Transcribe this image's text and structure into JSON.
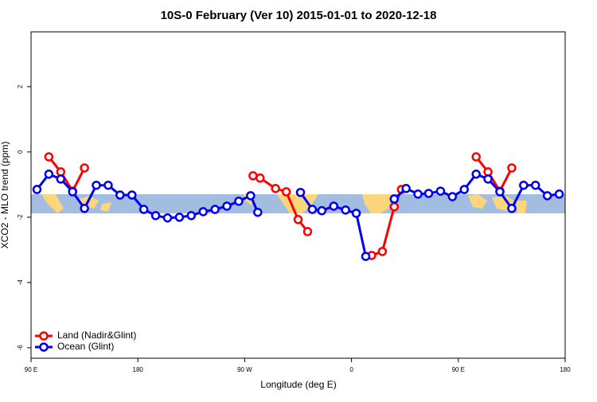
{
  "chart_data": {
    "type": "line",
    "title": "10S-0 February (Ver 10)   2015-01-01 to 2020-12-18",
    "x_label": "Longitude (deg E)",
    "y_label": "XCO2 - MLO trend (ppm)",
    "xlim": [
      90,
      540
    ],
    "ylim": [
      -6.32,
      3.68
    ],
    "xticks": [
      {
        "value": 90,
        "label": "90 E"
      },
      {
        "value": 180,
        "label": "180"
      },
      {
        "value": 270,
        "label": "90 W"
      },
      {
        "value": 360,
        "label": "0"
      },
      {
        "value": 450,
        "label": "90 E"
      },
      {
        "value": 540,
        "label": "180"
      }
    ],
    "yticks": [
      -6,
      -4,
      -2,
      0,
      2
    ],
    "legend": "bottom-left",
    "series": [
      {
        "name": "Land (Nadir&Glint)",
        "color": "#ff0000",
        "x": [
          105,
          115,
          125,
          135,
          null,
          277,
          283,
          296,
          305,
          315,
          323,
          null,
          377,
          386,
          396,
          402,
          null,
          465,
          475,
          485,
          495
        ],
        "values": [
          -0.15,
          -0.61,
          -1.2,
          -0.49,
          null,
          -0.73,
          -0.8,
          -1.12,
          -1.22,
          -2.07,
          -2.44,
          null,
          -3.17,
          -3.05,
          -1.68,
          -1.15,
          null,
          -0.15,
          -0.61,
          -1.2,
          -0.49
        ]
      },
      {
        "name": "Ocean (Glint)",
        "color": "#0000ee",
        "x": [
          95,
          105,
          115,
          125,
          135,
          145,
          155,
          165,
          175,
          185,
          195,
          205,
          215,
          225,
          235,
          245,
          255,
          265,
          275,
          281,
          null,
          317,
          327,
          335,
          345,
          355,
          364,
          372,
          null,
          396,
          406,
          416,
          425,
          435,
          445,
          455,
          465,
          475,
          485,
          495,
          505,
          515,
          525,
          535
        ],
        "values": [
          -1.15,
          -0.68,
          -0.83,
          -1.22,
          -1.73,
          -1.02,
          -1.02,
          -1.32,
          -1.32,
          -1.76,
          -1.95,
          -2.02,
          -2.0,
          -1.95,
          -1.83,
          -1.76,
          -1.66,
          -1.51,
          -1.34,
          -1.85,
          null,
          -1.24,
          -1.76,
          -1.8,
          -1.66,
          -1.78,
          -1.88,
          -3.2,
          null,
          -1.44,
          -1.12,
          -1.29,
          -1.27,
          -1.2,
          -1.37,
          -1.15,
          -0.68,
          -0.83,
          -1.22,
          -1.73,
          -1.02,
          -1.02,
          -1.34,
          -1.29
        ]
      }
    ]
  }
}
